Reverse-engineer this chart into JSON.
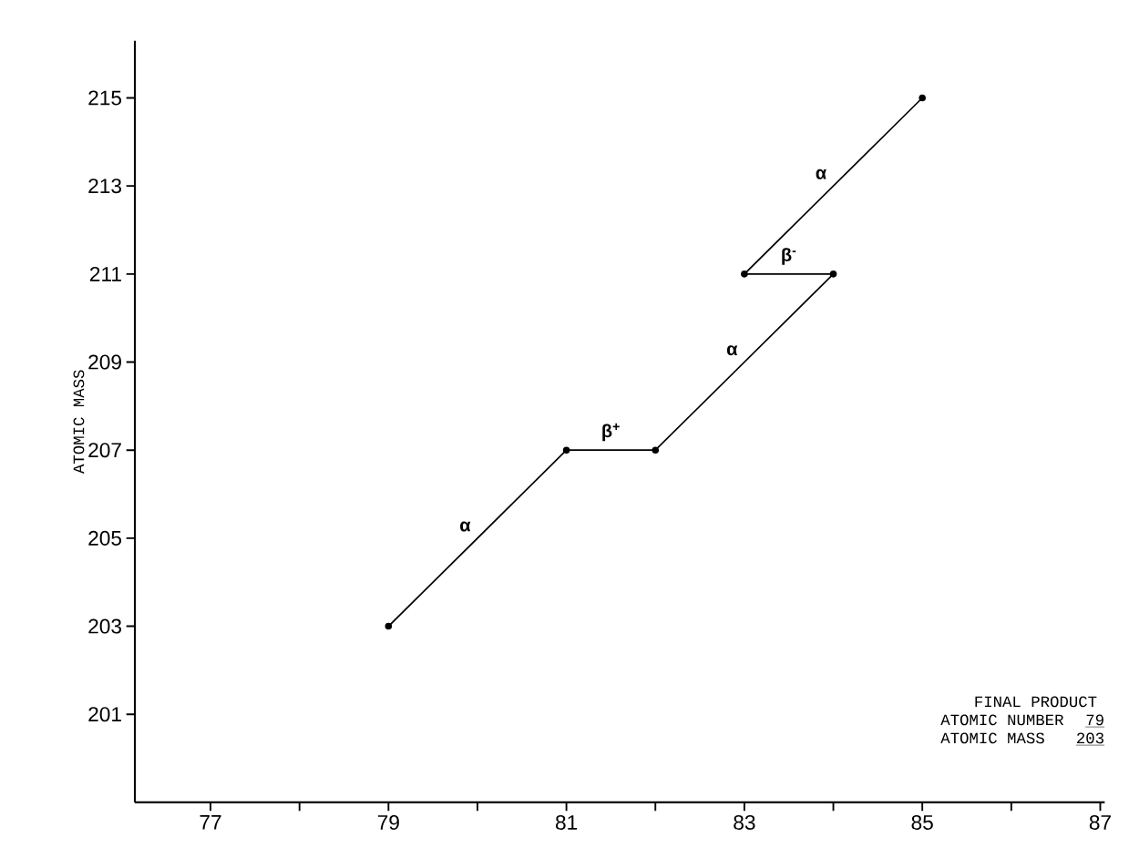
{
  "chart_data": {
    "type": "line",
    "ylabel": "ATOMIC MASS",
    "x": [
      85,
      83,
      84,
      82,
      81,
      79
    ],
    "series": [
      {
        "color": "#000000",
        "values": [
          215,
          211,
          211,
          207,
          207,
          203
        ]
      }
    ],
    "marker": "circle",
    "xlim": [
      76.15,
      87.05
    ],
    "ylim": [
      199,
      216.3
    ],
    "xticks": [
      {
        "value": 77,
        "label": "77"
      },
      {
        "value": 78,
        "label": null
      },
      {
        "value": 79,
        "label": "79"
      },
      {
        "value": 80,
        "label": null
      },
      {
        "value": 81,
        "label": "81"
      },
      {
        "value": 82,
        "label": null
      },
      {
        "value": 83,
        "label": "83"
      },
      {
        "value": 84,
        "label": null
      },
      {
        "value": 85,
        "label": "85"
      },
      {
        "value": 86,
        "label": null
      },
      {
        "value": 87,
        "label": "87"
      }
    ],
    "yticks": [
      201,
      203,
      205,
      207,
      209,
      211,
      213,
      215
    ],
    "annotations": [
      "α",
      "β$^{-}$",
      "α",
      "β$^{+}$",
      "α",
      "FINAL PRODUCT",
      "ATOMIC NUMBER",
      "79",
      "ATOMIC MASS",
      "203"
    ]
  }
}
